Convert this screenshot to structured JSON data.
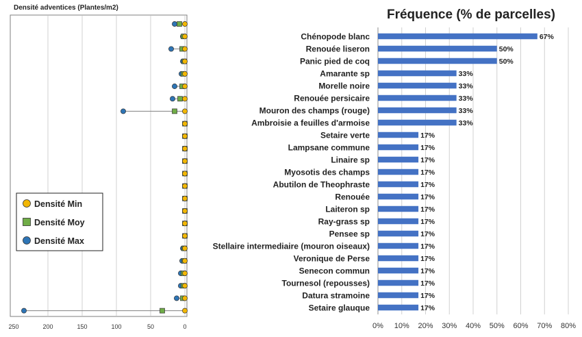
{
  "chart_data": [
    {
      "type": "scatter",
      "title": "Densité adventices (Plantes/m2)",
      "xlim": [
        250,
        0
      ],
      "x_reversed": true,
      "xticks": [
        250,
        200,
        150,
        100,
        50,
        0
      ],
      "grid": true,
      "legend_position": "bottom-left",
      "series": [
        {
          "name": "Densité Min",
          "color": "#F2B705",
          "marker": "circle",
          "values": [
            0,
            0,
            0,
            0,
            0,
            0,
            0,
            0,
            0,
            0,
            0,
            0,
            0,
            0,
            0,
            0,
            0,
            0,
            0,
            0,
            0,
            0,
            0,
            0
          ]
        },
        {
          "name": "Densité Moy",
          "color": "#70AD47",
          "marker": "square",
          "values": [
            8,
            2,
            4,
            1,
            2,
            4,
            7,
            15,
            0,
            0,
            0,
            0,
            0,
            0,
            0,
            0,
            0,
            0,
            1,
            1,
            2,
            2,
            3,
            33
          ]
        },
        {
          "name": "Densité Max",
          "color": "#2E75B6",
          "marker": "circle",
          "values": [
            15,
            3,
            20,
            3,
            5,
            15,
            18,
            90,
            0,
            0,
            0,
            0,
            0,
            0,
            0,
            0,
            0,
            0,
            3,
            4,
            6,
            6,
            12,
            235
          ]
        }
      ]
    },
    {
      "type": "bar",
      "orientation": "horizontal",
      "title": "Fréquence (% de parcelles)",
      "xlim": [
        0,
        80
      ],
      "xticks": [
        "0%",
        "10%",
        "20%",
        "30%",
        "40%",
        "50%",
        "60%",
        "70%",
        "80%"
      ],
      "grid": true,
      "bar_color": "#4472C4",
      "categories": [
        "Chénopode blanc",
        "Renouée liseron",
        "Panic pied de coq",
        "Amarante sp",
        "Morelle noire",
        "Renouée persicaire",
        "Mouron des champs (rouge)",
        "Ambroisie a feuilles d'armoise",
        "Setaire verte",
        "Lampsane commune",
        "Linaire sp",
        "Myosotis des champs",
        "Abutilon de Theophraste",
        "Renouée",
        "Laiteron sp",
        "Ray-grass sp",
        "Pensee sp",
        "Stellaire intermediaire (mouron oiseaux)",
        "Veronique de Perse",
        "Senecon commun",
        "Tournesol (repousses)",
        "Datura stramoine",
        "Setaire glauque"
      ],
      "values": [
        67,
        50,
        50,
        33,
        33,
        33,
        33,
        33,
        17,
        17,
        17,
        17,
        17,
        17,
        17,
        17,
        17,
        17,
        17,
        17,
        17,
        17,
        17
      ],
      "data_labels": [
        "67%",
        "50%",
        "50%",
        "33%",
        "33%",
        "33%",
        "33%",
        "33%",
        "17%",
        "17%",
        "17%",
        "17%",
        "17%",
        "17%",
        "17%",
        "17%",
        "17%",
        "17%",
        "17%",
        "17%",
        "17%",
        "17%",
        "17%"
      ]
    }
  ]
}
